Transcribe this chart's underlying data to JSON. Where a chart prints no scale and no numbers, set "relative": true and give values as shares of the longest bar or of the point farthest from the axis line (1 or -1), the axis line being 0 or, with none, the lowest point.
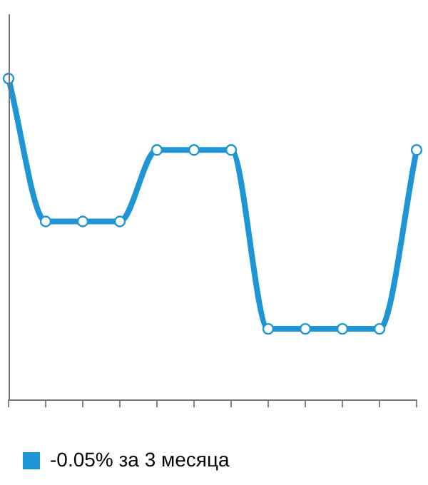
{
  "chart_data": {
    "type": "line",
    "relative": true,
    "categories": [
      null,
      null,
      null,
      null,
      null,
      null,
      null,
      null,
      null,
      null,
      null,
      null
    ],
    "series": [
      {
        "name": "-0.05% за 3 месяца",
        "color": "#1e96d6",
        "values": [
          1,
          0.556,
          0.556,
          0.556,
          0.778,
          0.778,
          0.778,
          0.222,
          0.222,
          0.222,
          0.222,
          0.778
        ]
      }
    ],
    "marker": "circle",
    "legend": "bottom"
  }
}
